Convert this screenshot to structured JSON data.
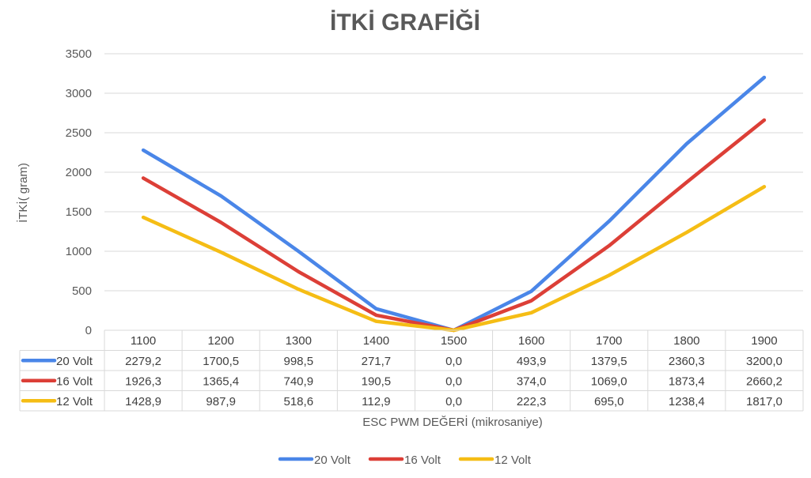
{
  "chart_data": {
    "type": "line",
    "title": "İTKİ GRAFİĞİ",
    "xlabel": "ESC PWM DEĞERİ (mikrosaniye)",
    "ylabel": "İTKİ( gram)",
    "ylim": [
      0,
      3500
    ],
    "yticks": [
      0,
      500,
      1000,
      1500,
      2000,
      2500,
      3000,
      3500
    ],
    "categories": [
      "1100",
      "1200",
      "1300",
      "1400",
      "1500",
      "1600",
      "1700",
      "1800",
      "1900"
    ],
    "grid": true,
    "legend": "bottom",
    "data_table": true,
    "series": [
      {
        "name": "20 Volt",
        "color": "#4a86e8",
        "values": [
          2279.2,
          1700.5,
          998.5,
          271.7,
          0.0,
          493.9,
          1379.5,
          2360.3,
          3200.0
        ],
        "labels": [
          "2279,2",
          "1700,5",
          "998,5",
          "271,7",
          "0,0",
          "493,9",
          "1379,5",
          "2360,3",
          "3200,0"
        ]
      },
      {
        "name": "16 Volt",
        "color": "#dc3f37",
        "values": [
          1926.3,
          1365.4,
          740.9,
          190.5,
          0.0,
          374.0,
          1069.0,
          1873.4,
          2660.2
        ],
        "labels": [
          "1926,3",
          "1365,4",
          "740,9",
          "190,5",
          "0,0",
          "374,0",
          "1069,0",
          "1873,4",
          "2660,2"
        ]
      },
      {
        "name": "12 Volt",
        "color": "#f5bd15",
        "values": [
          1428.9,
          987.9,
          518.6,
          112.9,
          0.0,
          222.3,
          695.0,
          1238.4,
          1817.0
        ],
        "labels": [
          "1428,9",
          "987,9",
          "518,6",
          "112,9",
          "0,0",
          "222,3",
          "695,0",
          "1238,4",
          "1817,0"
        ]
      }
    ]
  }
}
